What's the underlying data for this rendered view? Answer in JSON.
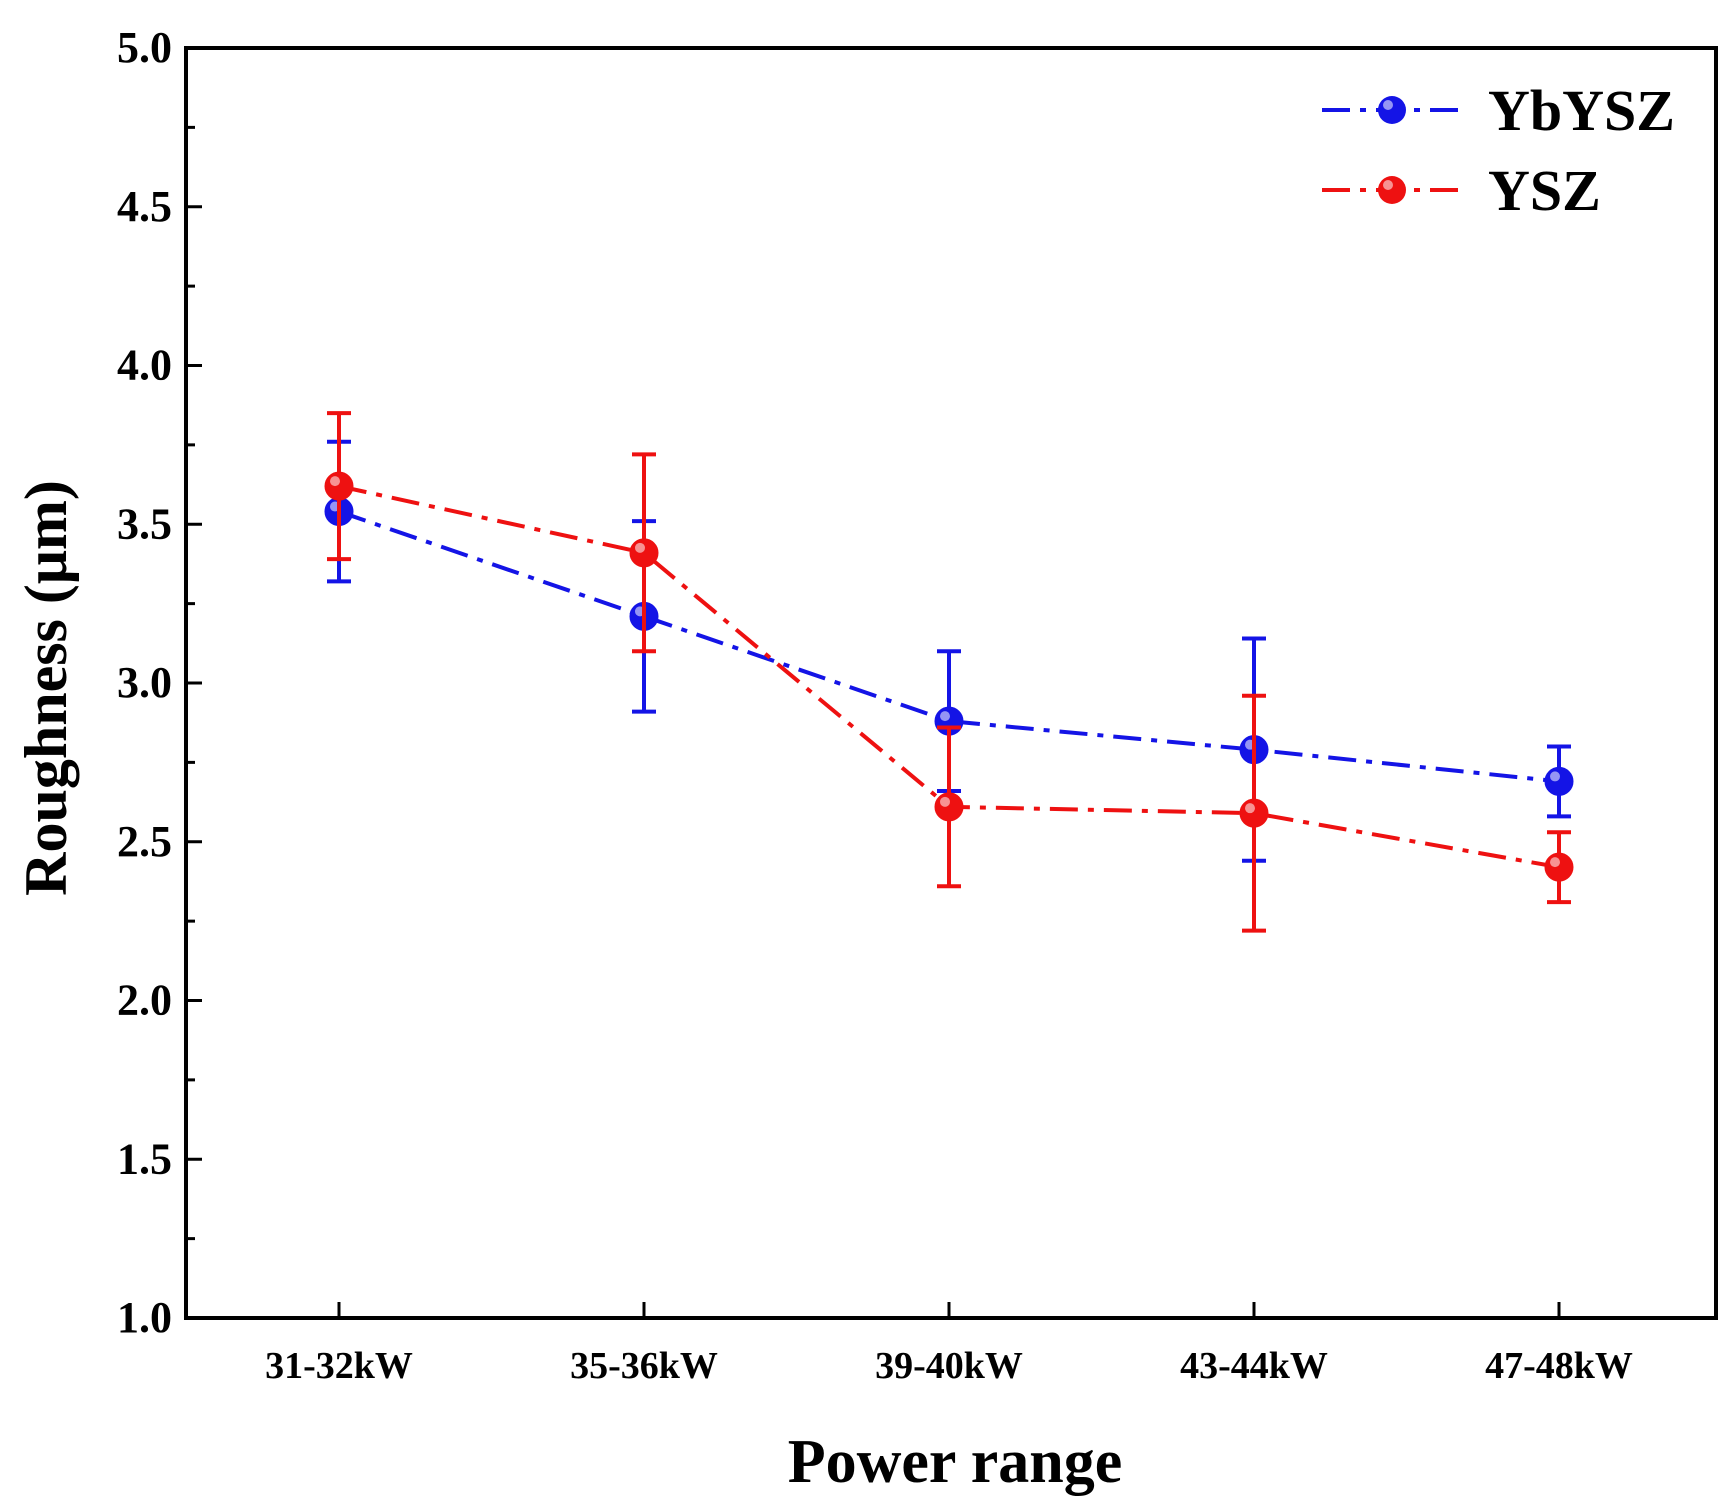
{
  "chart_data": {
    "type": "line",
    "title": "",
    "xlabel": "Power range",
    "ylabel": "Roughness (μm)",
    "categories": [
      "31-32kW",
      "35-36kW",
      "39-40kW",
      "43-44kW",
      "47-48kW"
    ],
    "ylim": [
      1.0,
      5.0
    ],
    "yticks": [
      "1.0",
      "1.5",
      "2.0",
      "2.5",
      "3.0",
      "3.5",
      "4.0",
      "4.5",
      "5.0"
    ],
    "grid": false,
    "legend_position": "top-right",
    "series": [
      {
        "name": "YbYSZ",
        "color": "#1414e6",
        "values": [
          3.54,
          3.21,
          2.88,
          2.79,
          2.69
        ],
        "errors": [
          0.22,
          0.3,
          0.22,
          0.35,
          0.11
        ]
      },
      {
        "name": "YSZ",
        "color": "#ee1111",
        "values": [
          3.62,
          3.41,
          2.61,
          2.59,
          2.42
        ],
        "errors": [
          0.23,
          0.31,
          0.25,
          0.37,
          0.11
        ]
      }
    ]
  }
}
